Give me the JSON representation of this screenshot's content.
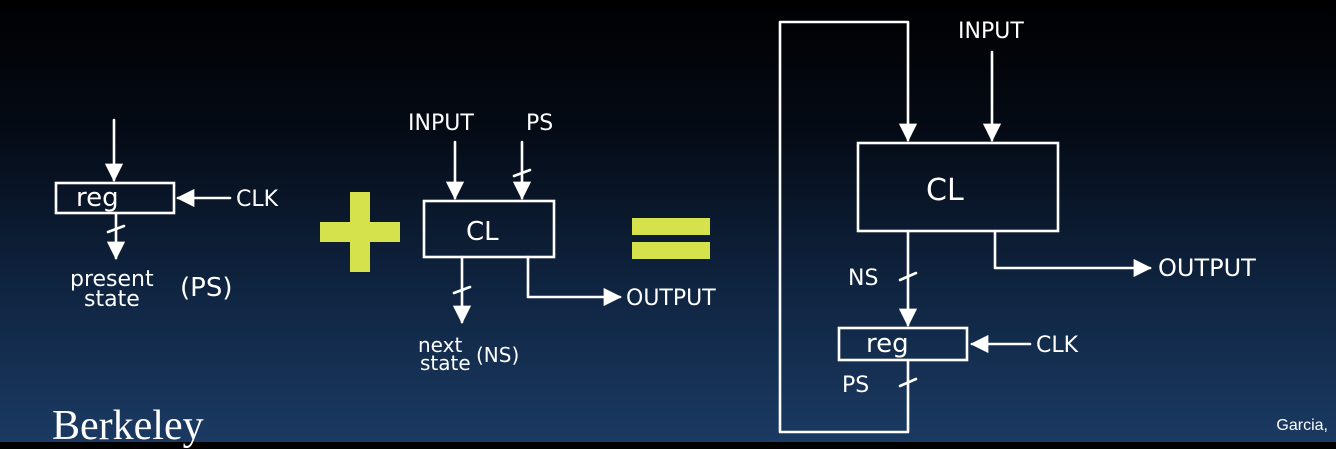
{
  "part1": {
    "box_label": "reg",
    "clock_label": "CLK",
    "output_label_line1": "present",
    "output_label_line2": "state",
    "output_abbrev": "(PS)"
  },
  "operator_plus": "+",
  "part2": {
    "input_label": "INPUT",
    "ps_label": "PS",
    "box_label": "CL",
    "output_label": "OUTPUT",
    "next_line1": "next",
    "next_line2": "state",
    "next_abbrev": "(NS)"
  },
  "operator_equals": "=",
  "result": {
    "input_label": "INPUT",
    "cl_label": "CL",
    "output_label": "OUTPUT",
    "ns_label": "NS",
    "reg_label": "reg",
    "clock_label": "CLK",
    "ps_label": "PS"
  },
  "footer": {
    "left_text": "Berkeley",
    "right_text": "Garcia,"
  },
  "colors": {
    "operator": "#d6e24c",
    "ink": "#ffffff"
  }
}
